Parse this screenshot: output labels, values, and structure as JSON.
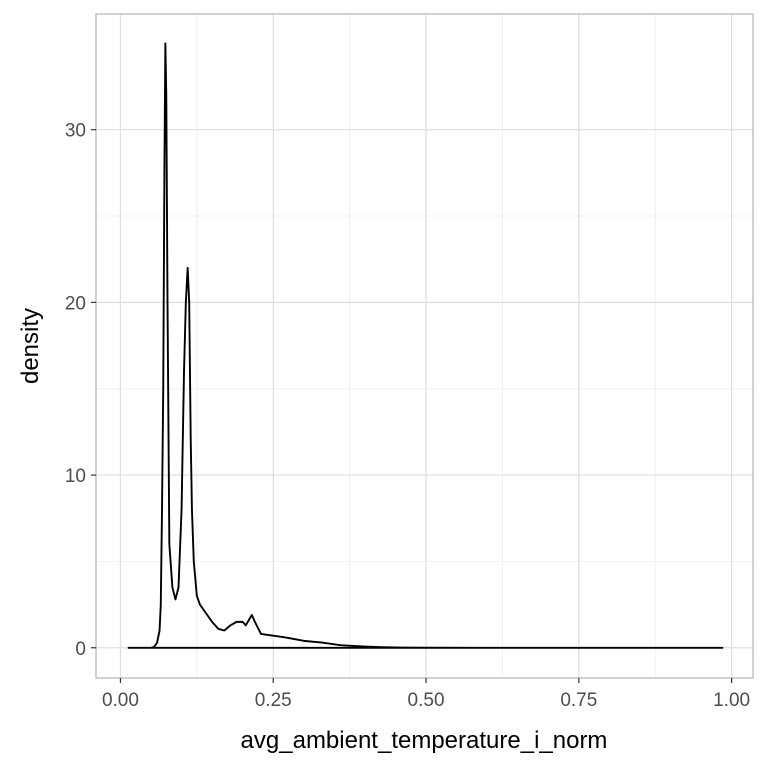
{
  "chart_data": {
    "type": "line",
    "title": "",
    "xlabel": "avg_ambient_temperature_i_norm",
    "ylabel": "density",
    "xlim": [
      -0.04,
      1.035
    ],
    "ylim": [
      -1.75,
      36.7
    ],
    "xticks": [
      0.0,
      0.25,
      0.5,
      0.75,
      1.0
    ],
    "xtick_labels": [
      "0.00",
      "0.25",
      "0.50",
      "0.75",
      "1.00"
    ],
    "yticks": [
      0,
      10,
      20,
      30
    ],
    "ytick_labels": [
      "0",
      "10",
      "20",
      "30"
    ],
    "grid": true,
    "legend": "none",
    "line_color": "#000000",
    "series": [
      {
        "x": [
          0.012,
          0.05,
          0.055,
          0.06,
          0.064,
          0.066,
          0.068,
          0.07,
          0.072,
          0.0735,
          0.075,
          0.077,
          0.08,
          0.085,
          0.09,
          0.095,
          0.1,
          0.104,
          0.107,
          0.11,
          0.1125,
          0.115,
          0.117,
          0.12,
          0.125,
          0.13,
          0.14,
          0.15,
          0.16,
          0.17,
          0.18,
          0.19,
          0.2,
          0.205,
          0.21,
          0.215,
          0.22,
          0.23,
          0.25,
          0.27,
          0.3,
          0.33,
          0.36,
          0.4,
          0.43,
          0.46,
          0.5,
          0.6,
          0.7,
          0.8,
          0.9,
          0.985,
          0.012
        ],
        "y": [
          0,
          0,
          0.05,
          0.3,
          1.0,
          2.5,
          8,
          15,
          28,
          35,
          32,
          20,
          6,
          3.5,
          2.8,
          3.5,
          8,
          16,
          20,
          22,
          20,
          12,
          8,
          5,
          3,
          2.5,
          2.0,
          1.5,
          1.1,
          1.0,
          1.3,
          1.5,
          1.5,
          1.3,
          1.6,
          1.9,
          1.5,
          0.8,
          0.7,
          0.6,
          0.4,
          0.3,
          0.15,
          0.07,
          0.03,
          0.01,
          0.005,
          0,
          0,
          0,
          0,
          0,
          0
        ]
      }
    ]
  }
}
